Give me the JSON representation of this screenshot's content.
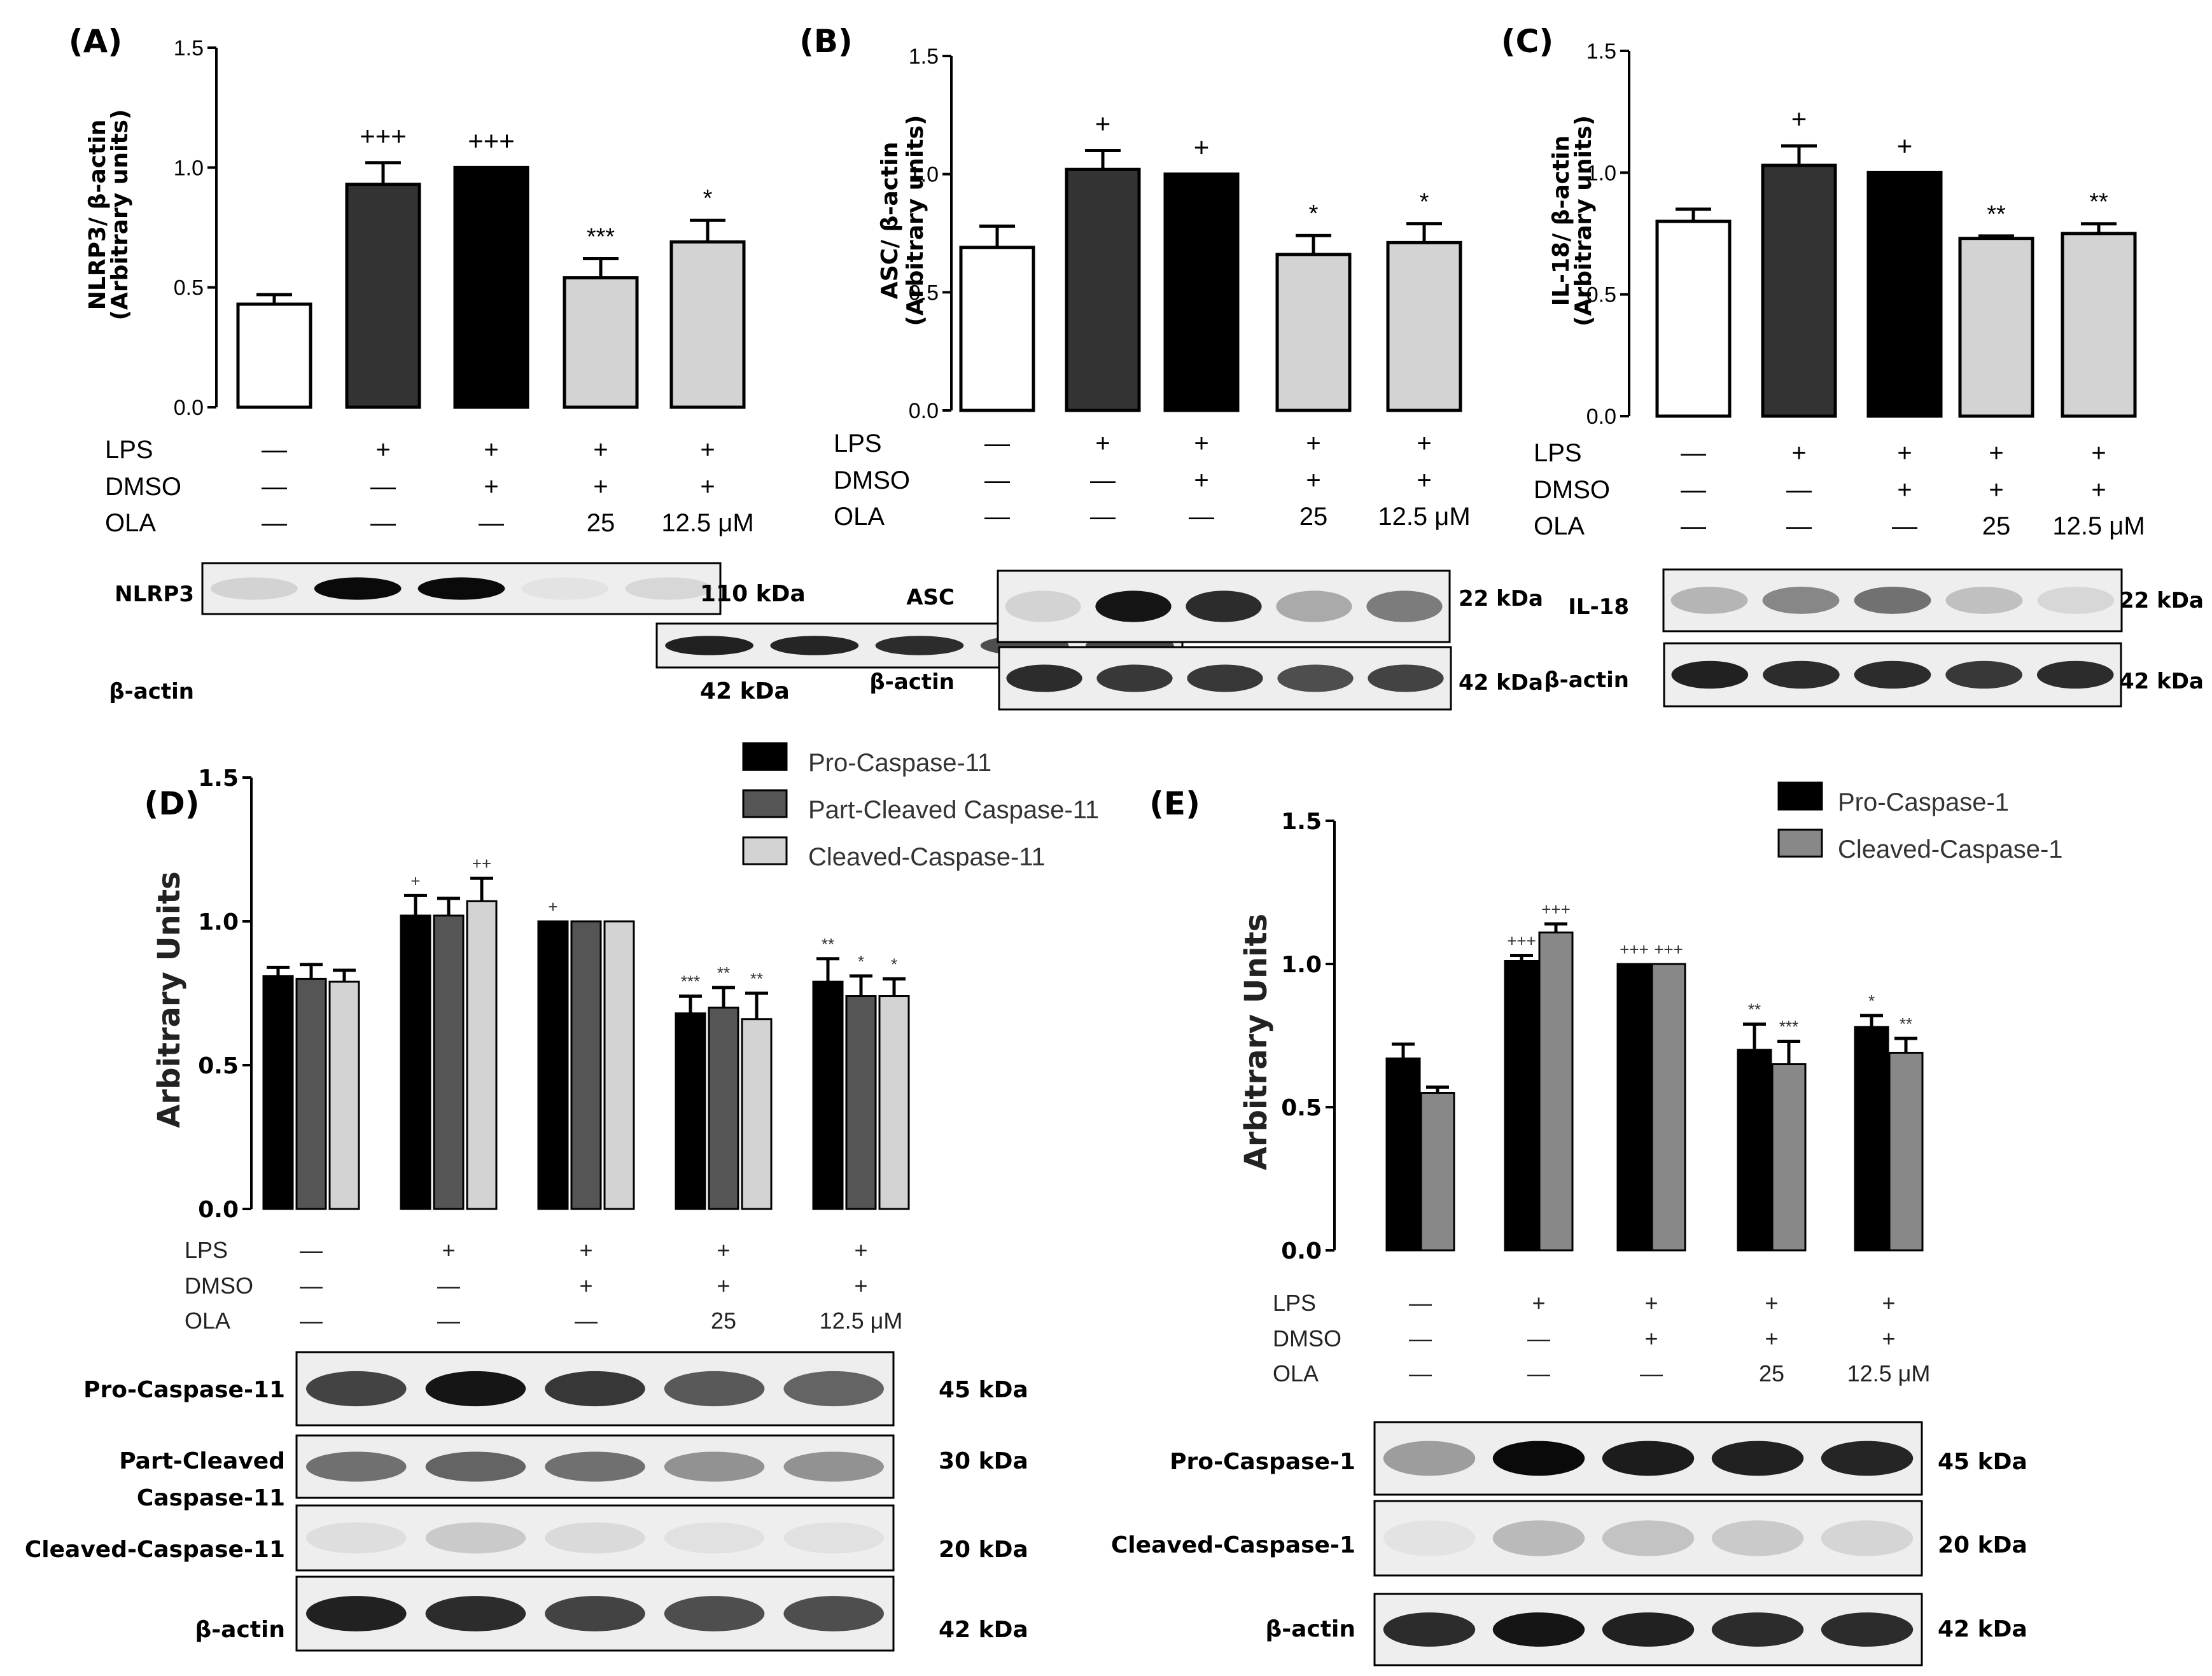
{
  "chart_data": [
    {
      "panel": "(A)",
      "type": "bar",
      "ylabel_line1": "NLRP3/ β-actin",
      "ylabel_line2": "(Arbitrary units)",
      "yticks": [
        "0.0",
        "0.5",
        "1.0",
        "1.5"
      ],
      "ylim": [
        0,
        1.5
      ],
      "colors": [
        "#ffffff",
        "#333333",
        "#000000",
        "#d3d3d3",
        "#d3d3d3"
      ],
      "values": [
        0.43,
        0.93,
        1.0,
        0.54,
        0.69
      ],
      "errors": [
        0.04,
        0.09,
        0.0,
        0.08,
        0.09
      ],
      "significance": [
        "",
        "+++",
        "+++",
        "***",
        "*"
      ],
      "treatments": {
        "LPS": [
          "—",
          "+",
          "+",
          "+",
          "+"
        ],
        "DMSO": [
          "—",
          "—",
          "+",
          "+",
          "+"
        ],
        "OLA": [
          "—",
          "—",
          "—",
          "25",
          "12.5 μM"
        ]
      },
      "blots": [
        {
          "label": "NLRP3",
          "kda": "110 kDa",
          "intensity": [
            0.12,
            1.0,
            1.0,
            0.05,
            0.1
          ]
        },
        {
          "label": "β-actin",
          "kda": "42 kDa",
          "intensity": [
            0.9,
            0.88,
            0.85,
            0.7,
            0.72
          ]
        }
      ]
    },
    {
      "panel": "(B)",
      "type": "bar",
      "ylabel_line1": "ASC/ β-actin",
      "ylabel_line2": "(Arbitrary units)",
      "yticks": [
        "0.0",
        "0.5",
        "1.0",
        "1.5"
      ],
      "ylim": [
        0,
        1.5
      ],
      "colors": [
        "#ffffff",
        "#333333",
        "#000000",
        "#d3d3d3",
        "#d3d3d3"
      ],
      "values": [
        0.69,
        1.02,
        1.0,
        0.66,
        0.71
      ],
      "errors": [
        0.09,
        0.08,
        0.0,
        0.08,
        0.08
      ],
      "significance": [
        "",
        "+",
        "+",
        "*",
        "*"
      ],
      "treatments": {
        "LPS": [
          "—",
          "+",
          "+",
          "+",
          "+"
        ],
        "DMSO": [
          "—",
          "—",
          "+",
          "+",
          "+"
        ],
        "OLA": [
          "—",
          "—",
          "—",
          "25",
          "12.5 μM"
        ]
      },
      "blots": [
        {
          "label": "ASC",
          "kda": "22 kDa",
          "intensity": [
            0.12,
            0.95,
            0.85,
            0.3,
            0.5
          ]
        },
        {
          "label": "β-actin",
          "kda": "42 kDa",
          "intensity": [
            0.85,
            0.8,
            0.8,
            0.7,
            0.75
          ]
        }
      ]
    },
    {
      "panel": "(C)",
      "type": "bar",
      "ylabel_line1": "IL-18/ β-actin",
      "ylabel_line2": "(Arbitrary units)",
      "yticks": [
        "0.0",
        "0.5",
        "1.0",
        "1.5"
      ],
      "ylim": [
        0,
        1.5
      ],
      "colors": [
        "#ffffff",
        "#333333",
        "#000000",
        "#d3d3d3",
        "#d3d3d3"
      ],
      "values": [
        0.8,
        1.03,
        1.0,
        0.73,
        0.75
      ],
      "errors": [
        0.05,
        0.08,
        0.0,
        0.01,
        0.04
      ],
      "significance": [
        "",
        "+",
        "+",
        "**",
        "**"
      ],
      "treatments": {
        "LPS": [
          "—",
          "+",
          "+",
          "+",
          "+"
        ],
        "DMSO": [
          "—",
          "—",
          "+",
          "+",
          "+"
        ],
        "OLA": [
          "—",
          "—",
          "—",
          "25",
          "12.5 μM"
        ]
      },
      "blots": [
        {
          "label": "IL-18",
          "kda": "22 kDa",
          "intensity": [
            0.25,
            0.45,
            0.55,
            0.2,
            0.1
          ]
        },
        {
          "label": "β-actin",
          "kda": "42 kDa",
          "intensity": [
            0.9,
            0.85,
            0.85,
            0.8,
            0.85
          ]
        }
      ]
    },
    {
      "panel": "(D)",
      "type": "bar",
      "ylabel": "Arbitrary Units",
      "yticks": [
        "0.0",
        "0.5",
        "1.0",
        "1.5"
      ],
      "ylim": [
        0,
        1.5
      ],
      "legend": "top-right",
      "series": [
        {
          "name": "Pro-Caspase-11",
          "color": "#000000",
          "values": [
            0.81,
            1.02,
            1.0,
            0.68,
            0.79
          ],
          "errors": [
            0.03,
            0.07,
            0.0,
            0.06,
            0.08
          ],
          "significance": [
            "",
            "+",
            "+",
            "***",
            "**"
          ]
        },
        {
          "name": "Part-Cleaved Caspase-11",
          "color": "#555555",
          "values": [
            0.8,
            1.02,
            1.0,
            0.7,
            0.74
          ],
          "errors": [
            0.05,
            0.06,
            0.0,
            0.07,
            0.07
          ],
          "significance": [
            "",
            "",
            "",
            "**",
            "*"
          ]
        },
        {
          "name": "Cleaved-Caspase-11",
          "color": "#d3d3d3",
          "values": [
            0.79,
            1.07,
            1.0,
            0.66,
            0.74
          ],
          "errors": [
            0.04,
            0.08,
            0.0,
            0.09,
            0.06
          ],
          "significance": [
            "",
            "++",
            "",
            "**",
            "*"
          ]
        }
      ],
      "treatments": {
        "LPS": [
          "—",
          "+",
          "+",
          "+",
          "+"
        ],
        "DMSO": [
          "—",
          "—",
          "+",
          "+",
          "+"
        ],
        "OLA": [
          "—",
          "—",
          "—",
          "25",
          "12.5 μM"
        ]
      },
      "blots": [
        {
          "label": "Pro-Caspase-11",
          "kda": "45 kDa",
          "intensity": [
            0.75,
            0.95,
            0.8,
            0.65,
            0.6
          ]
        },
        {
          "label": "Part-Cleaved\nCaspase-11",
          "kda": "30 kDa",
          "intensity": [
            0.55,
            0.6,
            0.55,
            0.4,
            0.4
          ]
        },
        {
          "label": "Cleaved-Caspase-11",
          "kda": "20 kDa",
          "intensity": [
            0.06,
            0.15,
            0.08,
            0.05,
            0.05
          ]
        },
        {
          "label": "β-actin",
          "kda": "42 kDa",
          "intensity": [
            0.9,
            0.85,
            0.75,
            0.7,
            0.7
          ]
        }
      ]
    },
    {
      "panel": "(E)",
      "type": "bar",
      "ylabel": "Arbitrary Units",
      "yticks": [
        "0.0",
        "0.5",
        "1.0",
        "1.5"
      ],
      "ylim": [
        0,
        1.5
      ],
      "legend": "top-right",
      "series": [
        {
          "name": "Pro-Caspase-1",
          "color": "#000000",
          "values": [
            0.67,
            1.01,
            1.0,
            0.7,
            0.78
          ],
          "errors": [
            0.05,
            0.02,
            0.0,
            0.09,
            0.04
          ],
          "significance": [
            "",
            "+++",
            "+++",
            "**",
            "*"
          ]
        },
        {
          "name": "Cleaved-Caspase-1",
          "color": "#888888",
          "values": [
            0.55,
            1.11,
            1.0,
            0.65,
            0.69
          ],
          "errors": [
            0.02,
            0.03,
            0.0,
            0.08,
            0.05
          ],
          "significance": [
            "",
            "+++",
            "+++",
            "***",
            "**"
          ]
        }
      ],
      "treatments": {
        "LPS": [
          "—",
          "+",
          "+",
          "+",
          "+"
        ],
        "DMSO": [
          "—",
          "—",
          "+",
          "+",
          "+"
        ],
        "OLA": [
          "—",
          "—",
          "—",
          "25",
          "12.5 μM"
        ]
      },
      "blots": [
        {
          "label": "Pro-Caspase-1",
          "kda": "45 kDa",
          "intensity": [
            0.35,
            1.0,
            0.92,
            0.9,
            0.88
          ]
        },
        {
          "label": "Cleaved-Caspase-1",
          "kda": "20 kDa",
          "intensity": [
            0.04,
            0.22,
            0.18,
            0.15,
            0.1
          ]
        },
        {
          "label": "β-actin",
          "kda": "42 kDa",
          "intensity": [
            0.85,
            0.95,
            0.9,
            0.85,
            0.85
          ]
        }
      ]
    }
  ]
}
